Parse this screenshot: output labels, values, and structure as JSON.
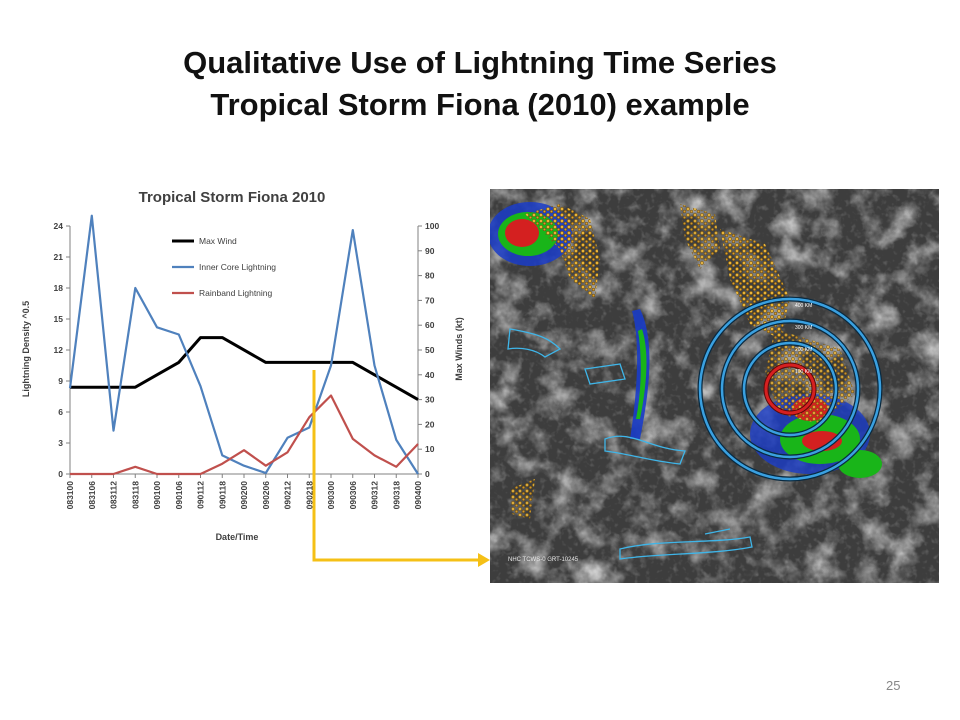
{
  "slide": {
    "title_line1": "Qualitative Use of Lightning Time Series",
    "title_line2": "Tropical Storm Fiona (2010) example",
    "page_number": "25"
  },
  "chart_data": {
    "type": "line",
    "title": "Tropical Storm Fiona 2010",
    "xlabel": "Date/Time",
    "ylabel_left": "Lightning Density ^0.5",
    "ylabel_right": "Max Winds (kt)",
    "categories": [
      "083100",
      "083106",
      "083112",
      "083118",
      "090100",
      "090106",
      "090112",
      "090118",
      "090200",
      "090206",
      "090212",
      "090218",
      "090300",
      "090306",
      "090312",
      "090318",
      "090400"
    ],
    "x_tick_labels": [
      "083100",
      "083106",
      "083112",
      "083118",
      "090100",
      "090106",
      "090112",
      "090118",
      "090200",
      "090206",
      "090212",
      "090218",
      "090300",
      "090306",
      "090312",
      "090318",
      "090400"
    ],
    "x_tick_positions": [
      0,
      1.5,
      3,
      4.5,
      6,
      7.5,
      9,
      10.5,
      12,
      13.5,
      15,
      16.5,
      18,
      19.5,
      21,
      22.5,
      24
    ],
    "ylim_left": [
      0,
      24
    ],
    "yticks_left": [
      0,
      3,
      6,
      9,
      12,
      15,
      18,
      21,
      24
    ],
    "ylim_right": [
      0,
      100
    ],
    "yticks_right": [
      0,
      10,
      20,
      30,
      40,
      50,
      60,
      70,
      80,
      90,
      100
    ],
    "grid": false,
    "legend_position": "top-center",
    "series": [
      {
        "name": "Max Wind",
        "axis": "right",
        "color": "#000000",
        "x": [
          0,
          4.5,
          6,
          7.5,
          9,
          10.5,
          13.5,
          15,
          16.5,
          18,
          19.5,
          21,
          22.5,
          24
        ],
        "values": [
          35,
          35,
          40,
          45,
          55,
          55,
          45,
          45,
          45,
          45,
          45,
          40,
          35,
          30
        ]
      },
      {
        "name": "Inner Core Lightning",
        "axis": "left",
        "color": "#4f81bd",
        "x": [
          0,
          1.5,
          3,
          4.5,
          6,
          7.5,
          9,
          10.5,
          12,
          13.5,
          15,
          16.5,
          18,
          19.5,
          21,
          22.5,
          24
        ],
        "values": [
          8.3,
          25,
          4.2,
          18,
          14.2,
          13.5,
          8.5,
          1.8,
          0.8,
          0.1,
          3.5,
          4.5,
          10.5,
          23.6,
          10.5,
          3.3,
          0
        ]
      },
      {
        "name": "Rainband Lightning",
        "axis": "left",
        "color": "#c0504d",
        "x": [
          0,
          1.5,
          3,
          4.5,
          6,
          7.5,
          9,
          10.5,
          12,
          13.5,
          15,
          16.5,
          18,
          19.5,
          21,
          22.5,
          24
        ],
        "values": [
          0,
          0,
          0,
          0.7,
          0,
          0,
          0,
          1,
          2.3,
          0.8,
          2.1,
          5.5,
          7.6,
          3.4,
          1.8,
          0.7,
          2.9
        ]
      }
    ]
  },
  "satellite": {
    "caption": "NHC TCWS-0 GRT-10245",
    "ring_labels": [
      "400 KM",
      "300 KM",
      "200 KM",
      "100 KM"
    ],
    "colors": {
      "arrow": "#f5c016",
      "ring": "#3aa0e0",
      "inner_ring": "#d62020",
      "lightning": "#e8b43a"
    }
  }
}
